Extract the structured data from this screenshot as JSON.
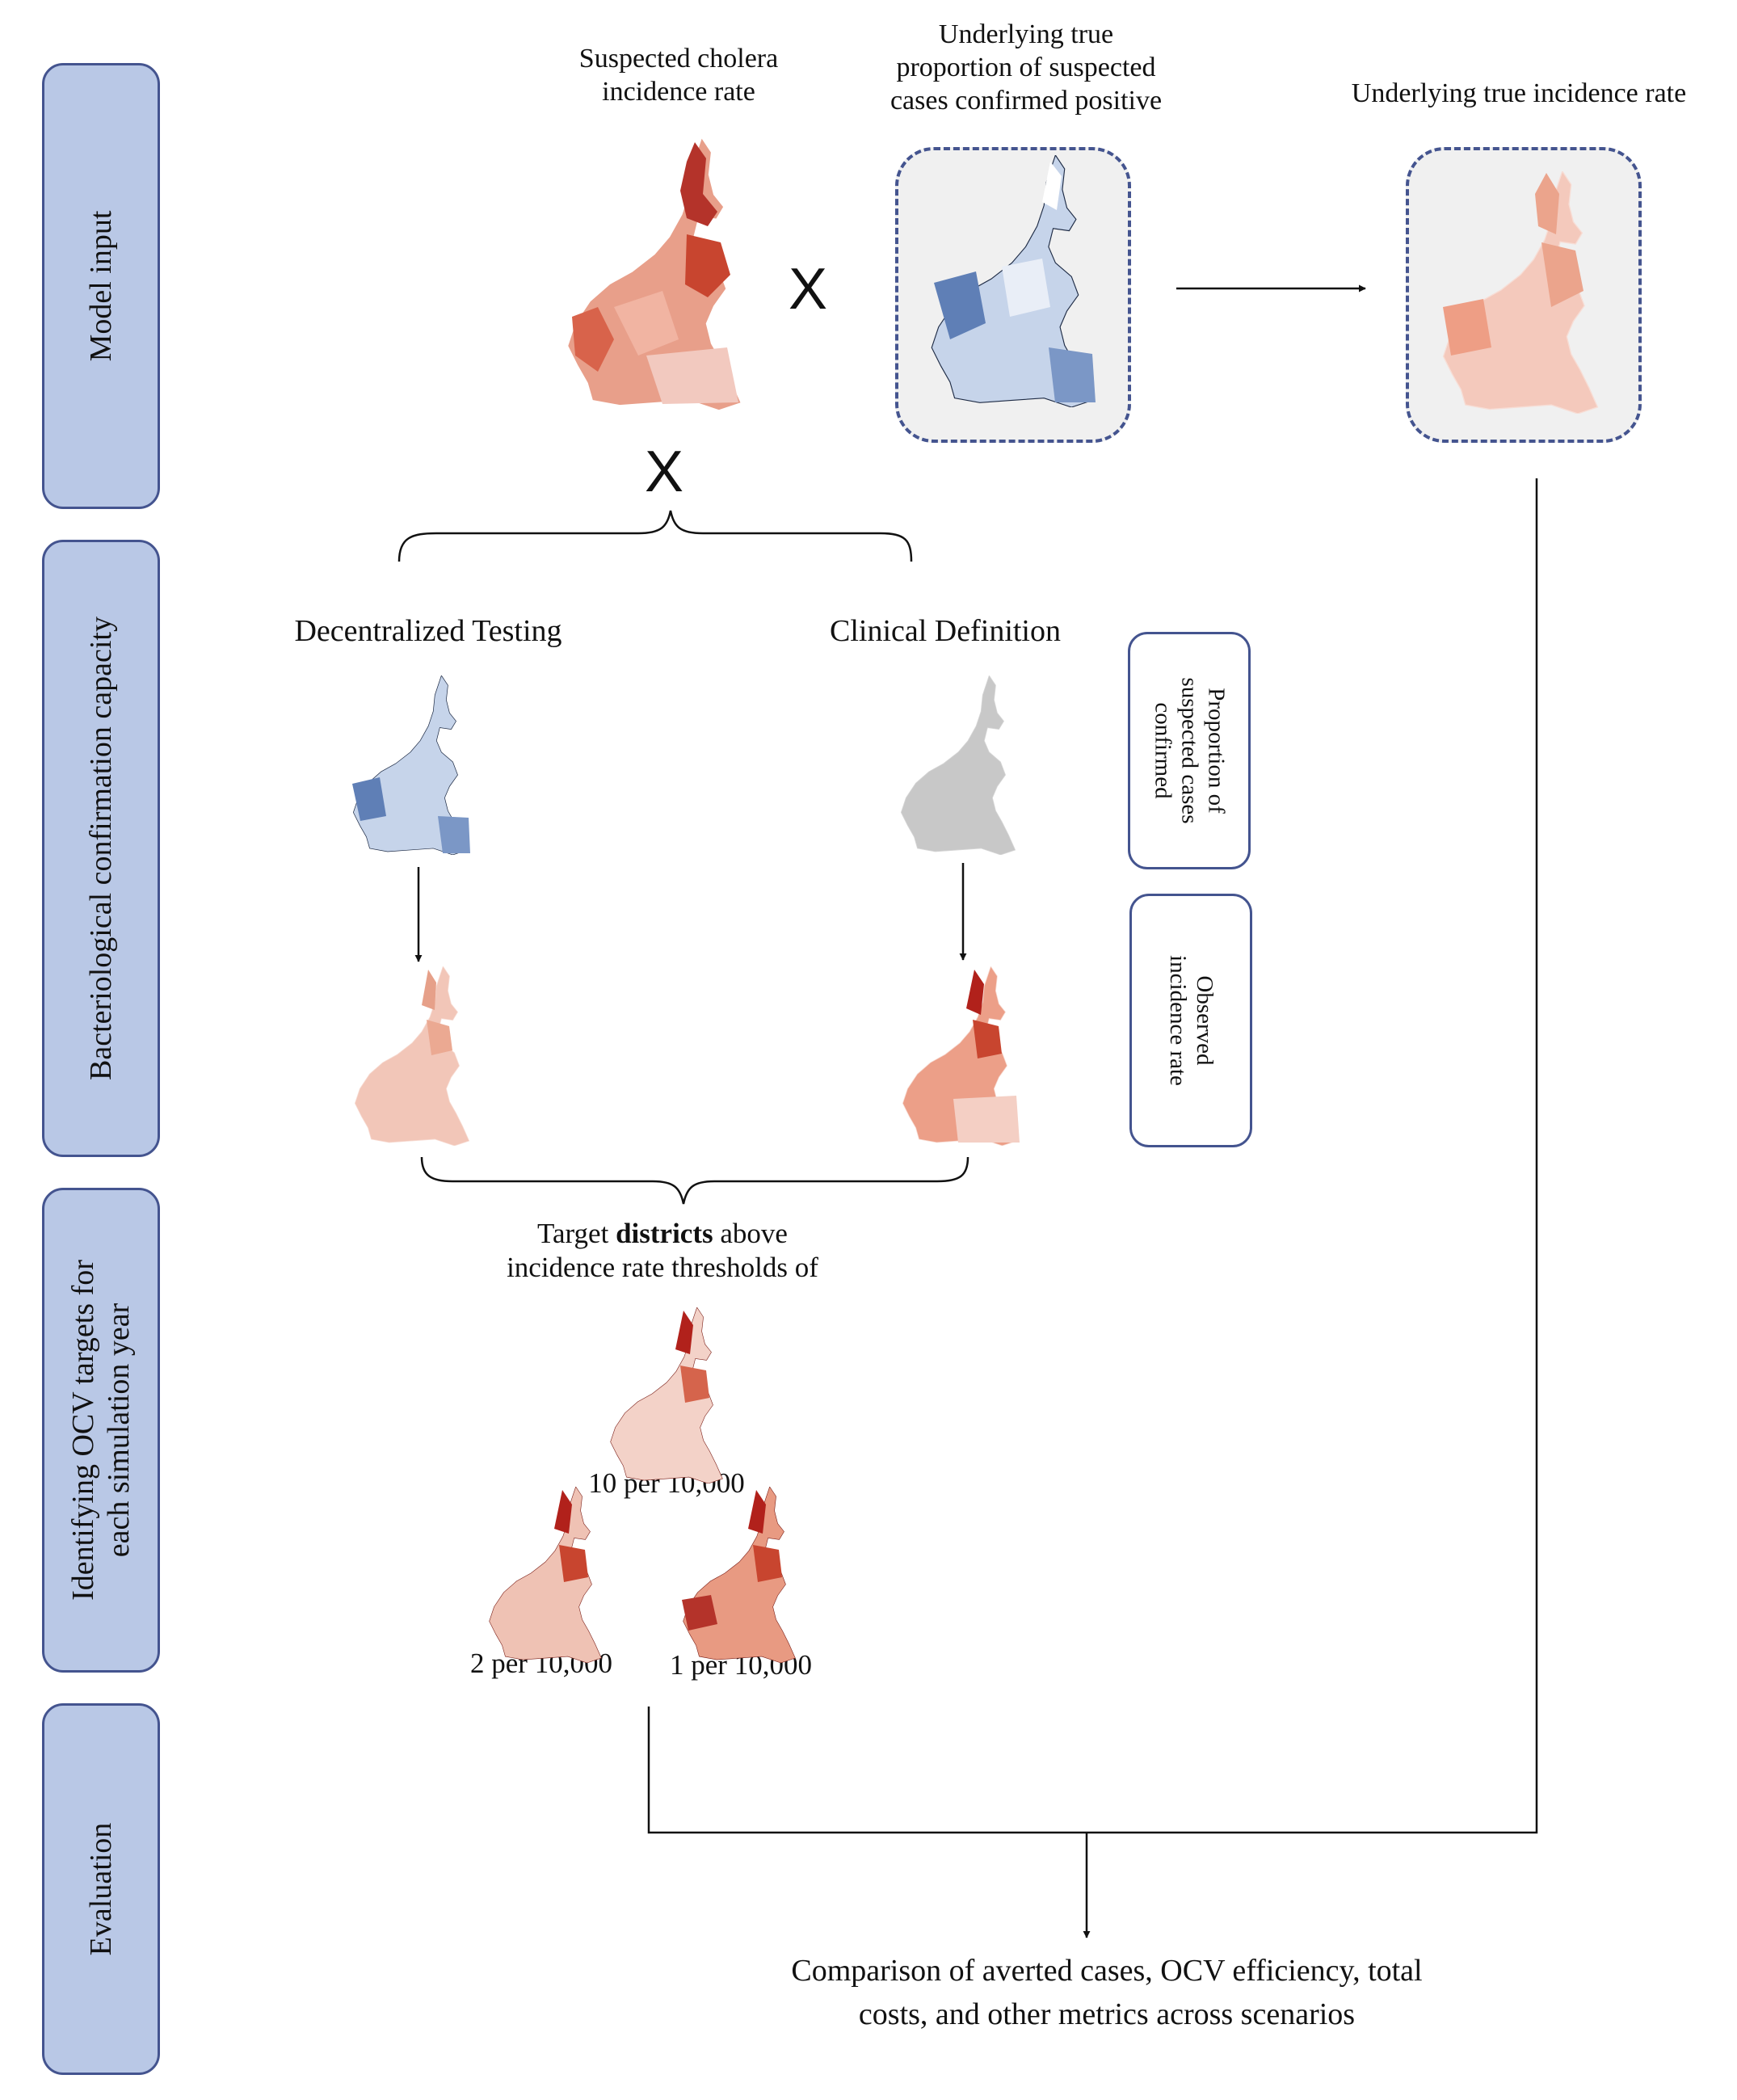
{
  "sidebar": {
    "model_input": "Model input",
    "bacteriological": "Bacteriological confirmation capacity",
    "identifying_line1": "Identifying OCV targets for",
    "identifying_line2": "each simulation year",
    "evaluation": "Evaluation"
  },
  "top": {
    "suspected_line1": "Suspected cholera",
    "suspected_line2": "incidence rate",
    "true_prop_line1": "Underlying true",
    "true_prop_line2": "proportion of suspected",
    "true_prop_line3": "cases confirmed positive",
    "true_incidence": "Underlying true incidence rate",
    "multiply_symbol": "X"
  },
  "scenarios": {
    "decentralized": "Decentralized Testing",
    "clinical": "Clinical Definition"
  },
  "legend": {
    "proportion_line1": "Proportion of",
    "proportion_line2": "suspected cases",
    "proportion_line3": "confirmed",
    "observed_line1": "Observed",
    "observed_line2": "incidence rate"
  },
  "targets": {
    "title_prefix": "Target",
    "title_bold": "districts",
    "title_suffix": "above",
    "title_line2": "incidence rate thresholds of",
    "t10": "10 per 10,000",
    "t2": "2 per 10,000",
    "t1": "1 per 10,000"
  },
  "evaluation": {
    "line1": "Comparison of averted cases, OCV efficiency, total",
    "line2": "costs, and other metrics across scenarios"
  },
  "colors": {
    "sidebar_fill": "#b9c8e6",
    "sidebar_border": "#44548f",
    "red_dark": "#b1211b",
    "blue_mid": "#6f8fc0",
    "grey_map": "#c8c8c8"
  }
}
